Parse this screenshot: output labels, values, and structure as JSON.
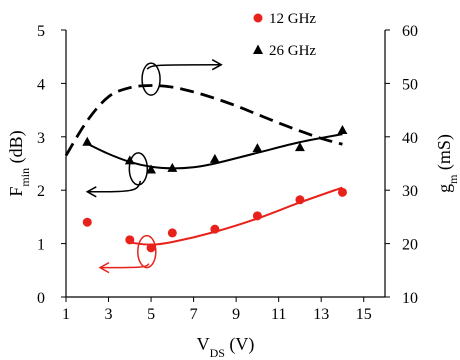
{
  "chart_data": {
    "type": "scatter",
    "xlabel": {
      "main": "V",
      "sub": "DS",
      "unit": " (V)"
    },
    "ylabel_left": {
      "main": "F",
      "sub": "min",
      "unit": " (dB)"
    },
    "ylabel_right": {
      "main": "g",
      "sub": "m",
      "unit": " (mS)"
    },
    "xlim": [
      1,
      16
    ],
    "ylim_left": [
      0,
      5
    ],
    "ylim_right": [
      10,
      60
    ],
    "x_ticks": [
      1,
      3,
      5,
      7,
      9,
      11,
      13,
      15
    ],
    "y_left_ticks": [
      0,
      1,
      2,
      3,
      4,
      5
    ],
    "y_right_ticks": [
      10,
      20,
      30,
      40,
      50,
      60
    ],
    "legend_placement": "top-right",
    "grid": false,
    "series": [
      {
        "name": "12 GHz",
        "color": "#e8221b",
        "marker": "circle",
        "axis": "left",
        "points": [
          [
            2,
            1.4
          ],
          [
            4,
            1.07
          ],
          [
            5,
            0.92
          ],
          [
            6,
            1.2
          ],
          [
            8,
            1.27
          ],
          [
            10,
            1.52
          ],
          [
            12,
            1.82
          ],
          [
            14,
            1.96
          ]
        ],
        "trend": [
          [
            4,
            1.02
          ],
          [
            5,
            0.98
          ],
          [
            6,
            1.03
          ],
          [
            8,
            1.22
          ],
          [
            10,
            1.47
          ],
          [
            12,
            1.77
          ],
          [
            14,
            2.05
          ]
        ]
      },
      {
        "name": "26 GHz",
        "color": "#000000",
        "marker": "triangle",
        "axis": "left",
        "points": [
          [
            2,
            2.9
          ],
          [
            4,
            2.55
          ],
          [
            5,
            2.38
          ],
          [
            6,
            2.41
          ],
          [
            8,
            2.58
          ],
          [
            10,
            2.78
          ],
          [
            12,
            2.8
          ],
          [
            14,
            3.12
          ]
        ],
        "trend": [
          [
            2,
            2.87
          ],
          [
            3,
            2.68
          ],
          [
            4,
            2.53
          ],
          [
            5,
            2.44
          ],
          [
            6,
            2.41
          ],
          [
            7,
            2.43
          ],
          [
            8,
            2.5
          ],
          [
            10,
            2.7
          ],
          [
            12,
            2.9
          ],
          [
            14,
            3.05
          ]
        ]
      },
      {
        "name": "g_m",
        "color": "#000000",
        "style": "dashed",
        "axis": "right",
        "trend": [
          [
            1,
            36.5
          ],
          [
            2,
            43
          ],
          [
            3,
            47.5
          ],
          [
            4,
            49.2
          ],
          [
            5,
            49.6
          ],
          [
            6,
            49.3
          ],
          [
            7,
            48.4
          ],
          [
            8,
            47.2
          ],
          [
            9,
            45.8
          ],
          [
            10,
            44.2
          ],
          [
            11,
            42.6
          ],
          [
            12,
            41.1
          ],
          [
            13,
            39.7
          ],
          [
            14,
            38.6
          ]
        ]
      }
    ],
    "annotations": [
      {
        "kind": "ellipse-arrow",
        "cx": 5,
        "cy": 4.08,
        "to_x": 8.3,
        "to_y": 4.35,
        "color": "#000000"
      },
      {
        "kind": "ellipse-arrow",
        "cx": 4.4,
        "cy": 2.4,
        "to_x": 2.0,
        "to_y": 1.97,
        "color": "#000000"
      },
      {
        "kind": "ellipse-arrow",
        "cx": 4.8,
        "cy": 0.85,
        "to_x": 2.6,
        "to_y": 0.55,
        "color": "#e8221b"
      }
    ]
  }
}
